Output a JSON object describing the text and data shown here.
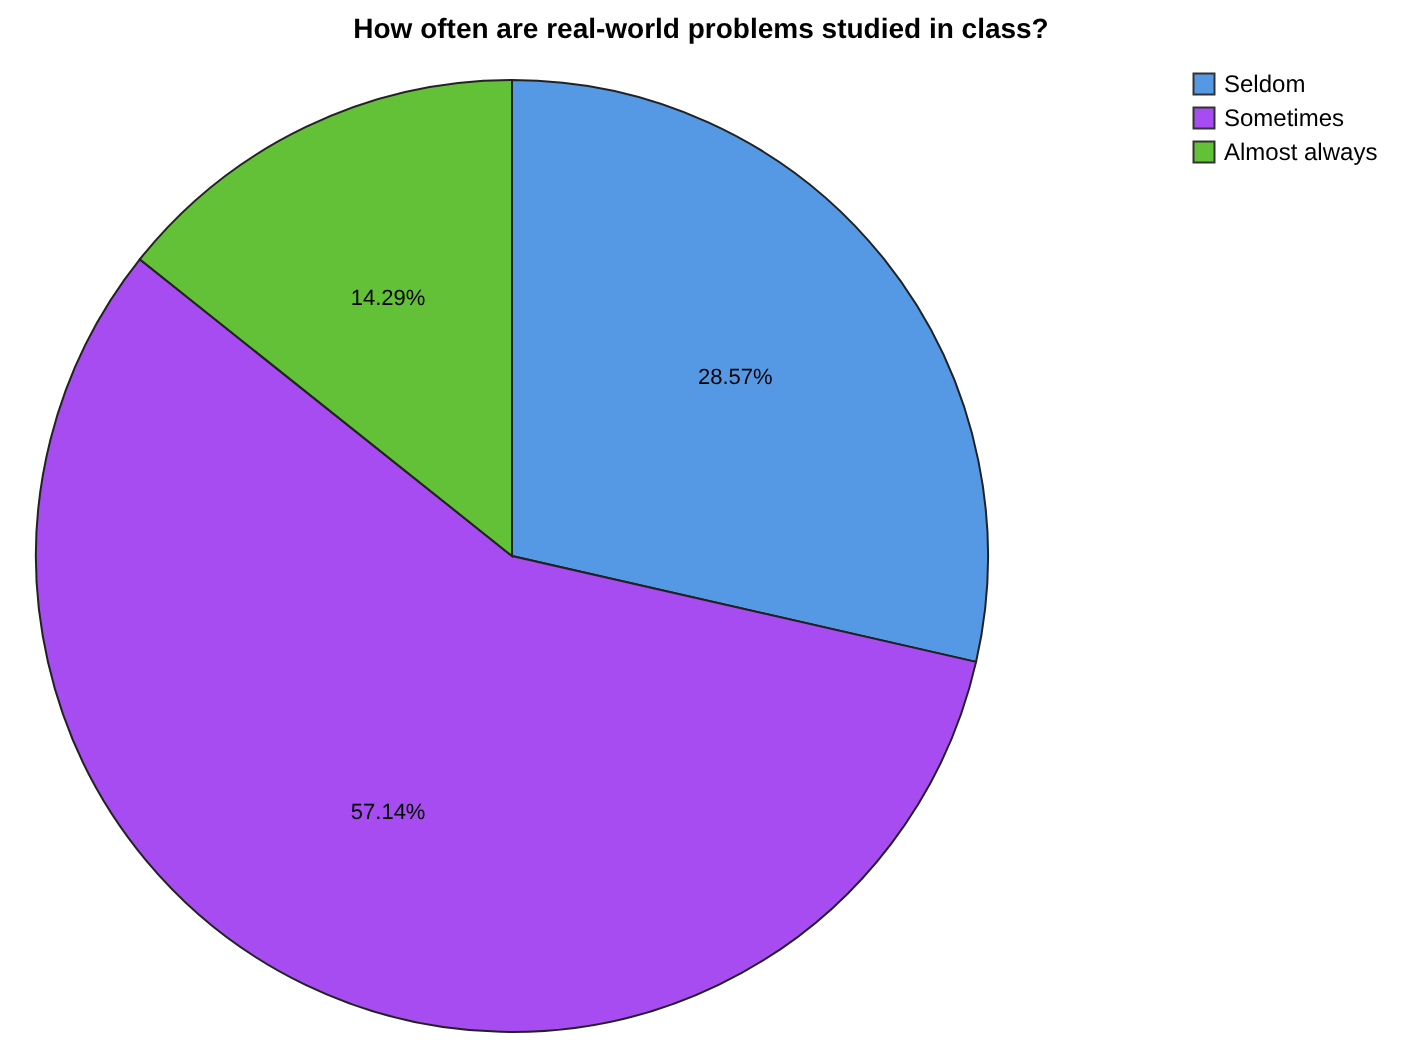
{
  "chart_data": {
    "type": "pie",
    "title": "How often are real-world problems studied in class?",
    "categories": [
      "Seldom",
      "Sometimes",
      "Almost always"
    ],
    "values": [
      28.57,
      57.14,
      14.29
    ],
    "colors": [
      "#5599e4",
      "#a64cf0",
      "#62c136"
    ],
    "value_labels": [
      "28.57%",
      "57.14%",
      "14.29%"
    ],
    "legend": "top right"
  }
}
